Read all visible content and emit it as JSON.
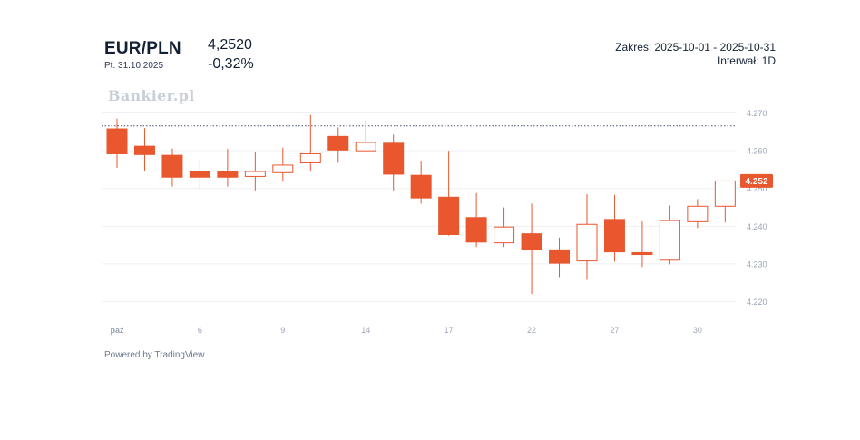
{
  "header": {
    "symbol": "EUR/PLN",
    "date": "Pt. 31.10.2025",
    "price": "4,2520",
    "change": "-0,32%",
    "range": "Zakres: 2025-10-01 - 2025-10-31",
    "interval": "Interwał: 1D"
  },
  "watermark": "Bankier.pl",
  "footer": {
    "powered_by": "Powered by TradingView"
  },
  "colors": {
    "up": "#e8572e",
    "down": "#e8572e",
    "up_fill": "#ffffff",
    "grid": "#eef0f4",
    "ref_line": "#44507a",
    "axis_text": "#9aa3b5"
  },
  "chart_data": {
    "type": "candlestick",
    "x_tick_labels": [
      "paź",
      "6",
      "9",
      "14",
      "17",
      "22",
      "27",
      "30"
    ],
    "y_ticks": [
      4.22,
      4.23,
      4.24,
      4.25,
      4.26,
      4.27
    ],
    "y_tick_labels": [
      "4.220",
      "4.230",
      "4.240",
      "4.250",
      "4.260",
      "4.270"
    ],
    "ylim": [
      4.217,
      4.2735
    ],
    "last_price_label": "4.252",
    "last_price": 4.252,
    "reference_line": 4.2666,
    "candles": [
      {
        "date": "2025-10-01",
        "open": 4.2658,
        "high": 4.2685,
        "low": 4.2555,
        "close": 4.2592
      },
      {
        "date": "2025-10-02",
        "open": 4.2612,
        "high": 4.266,
        "low": 4.2545,
        "close": 4.259
      },
      {
        "date": "2025-10-03",
        "open": 4.2588,
        "high": 4.2606,
        "low": 4.2505,
        "close": 4.253
      },
      {
        "date": "2025-10-06",
        "open": 4.2546,
        "high": 4.2575,
        "low": 4.25,
        "close": 4.253
      },
      {
        "date": "2025-10-07",
        "open": 4.2546,
        "high": 4.2605,
        "low": 4.2505,
        "close": 4.253
      },
      {
        "date": "2025-10-08",
        "open": 4.2532,
        "high": 4.2598,
        "low": 4.2495,
        "close": 4.2545
      },
      {
        "date": "2025-10-09",
        "open": 4.2542,
        "high": 4.2608,
        "low": 4.2518,
        "close": 4.2562
      },
      {
        "date": "2025-10-10",
        "open": 4.2568,
        "high": 4.2695,
        "low": 4.2545,
        "close": 4.2592
      },
      {
        "date": "2025-10-13",
        "open": 4.2638,
        "high": 4.2662,
        "low": 4.2568,
        "close": 4.2602
      },
      {
        "date": "2025-10-14",
        "open": 4.26,
        "high": 4.268,
        "low": 4.26,
        "close": 4.2622
      },
      {
        "date": "2025-10-15",
        "open": 4.262,
        "high": 4.2643,
        "low": 4.2495,
        "close": 4.2538
      },
      {
        "date": "2025-10-16",
        "open": 4.2535,
        "high": 4.2572,
        "low": 4.246,
        "close": 4.2475
      },
      {
        "date": "2025-10-17",
        "open": 4.2477,
        "high": 4.26,
        "low": 4.2375,
        "close": 4.2378
      },
      {
        "date": "2025-10-20",
        "open": 4.2423,
        "high": 4.2488,
        "low": 4.2345,
        "close": 4.2358
      },
      {
        "date": "2025-10-21",
        "open": 4.2356,
        "high": 4.245,
        "low": 4.2345,
        "close": 4.2398
      },
      {
        "date": "2025-10-22",
        "open": 4.238,
        "high": 4.246,
        "low": 4.222,
        "close": 4.2337
      },
      {
        "date": "2025-10-23",
        "open": 4.2335,
        "high": 4.237,
        "low": 4.2265,
        "close": 4.2302
      },
      {
        "date": "2025-10-24",
        "open": 4.2308,
        "high": 4.2485,
        "low": 4.2258,
        "close": 4.2405
      },
      {
        "date": "2025-10-27",
        "open": 4.2418,
        "high": 4.2483,
        "low": 4.2306,
        "close": 4.2332
      },
      {
        "date": "2025-10-28",
        "open": 4.233,
        "high": 4.2413,
        "low": 4.2292,
        "close": 4.2325
      },
      {
        "date": "2025-10-29",
        "open": 4.231,
        "high": 4.2455,
        "low": 4.2299,
        "close": 4.2415
      },
      {
        "date": "2025-10-30",
        "open": 4.2412,
        "high": 4.2472,
        "low": 4.2395,
        "close": 4.2453
      },
      {
        "date": "2025-10-31",
        "open": 4.2453,
        "high": 4.252,
        "low": 4.241,
        "close": 4.252
      }
    ]
  }
}
